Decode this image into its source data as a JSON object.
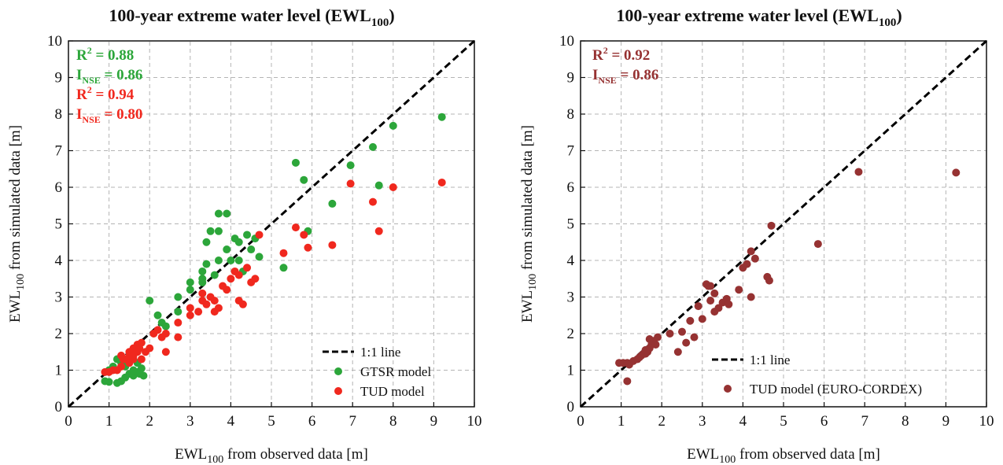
{
  "colors": {
    "green": "#2ca63a",
    "red": "#f0281e",
    "brown": "#963232",
    "grid": "#b4b4b4",
    "axis": "#111111"
  },
  "chart_data": [
    {
      "type": "scatter",
      "title": {
        "prefix": "100-year extreme water level (EWL",
        "sub": "100",
        "suffix": ")"
      },
      "xlabel": {
        "prefix": "EWL",
        "sub": "100",
        "suffix": " from observed data [m]"
      },
      "ylabel": {
        "prefix": "EWL",
        "sub": "100",
        "suffix": " from simulated data [m]"
      },
      "xlim": [
        0,
        10
      ],
      "ylim": [
        0,
        10
      ],
      "ticks": [
        "0",
        "1",
        "2",
        "3",
        "4",
        "5",
        "6",
        "7",
        "8",
        "9",
        "10"
      ],
      "grid": true,
      "legend_position": "bottom-right",
      "stats": [
        {
          "color": "#2ca63a",
          "r2_label": "R",
          "r2_sup": "2",
          "r2_value": " = 0.88",
          "nse_label": "I",
          "nse_sub": "NSE",
          "nse_value": " = 0.86"
        },
        {
          "color": "#f0281e",
          "r2_label": "R",
          "r2_sup": "2",
          "r2_value": " = 0.94",
          "nse_label": "I",
          "nse_sub": "NSE",
          "nse_value": " = 0.80"
        }
      ],
      "legend": [
        {
          "kind": "line",
          "label": "1:1 line"
        },
        {
          "kind": "dot",
          "color": "#2ca63a",
          "label": "GTSR model"
        },
        {
          "kind": "dot",
          "color": "#f0281e",
          "label": "TUD model"
        }
      ],
      "series": [
        {
          "name": "GTSR model",
          "color": "#2ca63a",
          "points": [
            [
              0.9,
              0.7
            ],
            [
              1.0,
              0.68
            ],
            [
              1.2,
              0.65
            ],
            [
              1.3,
              0.7
            ],
            [
              1.4,
              0.8
            ],
            [
              1.5,
              0.9
            ],
            [
              1.6,
              0.85
            ],
            [
              1.7,
              0.95
            ],
            [
              1.8,
              1.05
            ],
            [
              1.75,
              0.9
            ],
            [
              1.85,
              0.85
            ],
            [
              1.6,
              1.0
            ],
            [
              1.3,
              1.2
            ],
            [
              1.2,
              1.3
            ],
            [
              1.1,
              1.1
            ],
            [
              1.0,
              1.0
            ],
            [
              1.4,
              1.1
            ],
            [
              1.7,
              1.2
            ],
            [
              2.0,
              2.9
            ],
            [
              2.2,
              2.5
            ],
            [
              2.3,
              2.3
            ],
            [
              2.4,
              2.2
            ],
            [
              2.7,
              3.0
            ],
            [
              2.7,
              2.6
            ],
            [
              3.0,
              3.2
            ],
            [
              3.0,
              3.4
            ],
            [
              3.3,
              3.4
            ],
            [
              3.3,
              3.5
            ],
            [
              3.4,
              3.9
            ],
            [
              3.3,
              3.7
            ],
            [
              3.4,
              4.5
            ],
            [
              3.5,
              4.8
            ],
            [
              3.6,
              3.6
            ],
            [
              3.7,
              4.0
            ],
            [
              3.7,
              5.28
            ],
            [
              3.9,
              5.28
            ],
            [
              3.7,
              4.8
            ],
            [
              3.9,
              4.3
            ],
            [
              4.0,
              4.0
            ],
            [
              4.1,
              4.6
            ],
            [
              4.2,
              4.5
            ],
            [
              4.2,
              4.0
            ],
            [
              4.3,
              3.7
            ],
            [
              4.4,
              4.7
            ],
            [
              4.6,
              4.6
            ],
            [
              4.5,
              4.3
            ],
            [
              4.7,
              4.1
            ],
            [
              5.3,
              3.8
            ],
            [
              5.6,
              6.67
            ],
            [
              5.8,
              6.2
            ],
            [
              5.9,
              4.8
            ],
            [
              6.5,
              5.55
            ],
            [
              6.95,
              6.6
            ],
            [
              7.5,
              7.1
            ],
            [
              7.65,
              6.05
            ],
            [
              8.0,
              7.68
            ],
            [
              9.2,
              7.92
            ]
          ]
        },
        {
          "name": "TUD model",
          "color": "#f0281e",
          "points": [
            [
              0.9,
              0.95
            ],
            [
              1.0,
              0.95
            ],
            [
              1.1,
              1.0
            ],
            [
              1.2,
              1.0
            ],
            [
              1.3,
              1.1
            ],
            [
              1.35,
              1.3
            ],
            [
              1.4,
              1.3
            ],
            [
              1.5,
              1.4
            ],
            [
              1.5,
              1.5
            ],
            [
              1.6,
              1.6
            ],
            [
              1.6,
              1.4
            ],
            [
              1.7,
              1.7
            ],
            [
              1.75,
              1.6
            ],
            [
              1.8,
              1.75
            ],
            [
              1.7,
              1.5
            ],
            [
              1.8,
              1.3
            ],
            [
              1.9,
              1.5
            ],
            [
              1.5,
              1.2
            ],
            [
              1.6,
              1.3
            ],
            [
              1.3,
              1.4
            ],
            [
              2.0,
              1.6
            ],
            [
              2.1,
              2.0
            ],
            [
              2.2,
              2.1
            ],
            [
              2.3,
              1.9
            ],
            [
              2.4,
              2.0
            ],
            [
              2.4,
              1.5
            ],
            [
              2.7,
              2.3
            ],
            [
              2.7,
              1.9
            ],
            [
              3.0,
              2.7
            ],
            [
              3.0,
              2.5
            ],
            [
              3.2,
              2.6
            ],
            [
              3.3,
              2.9
            ],
            [
              3.3,
              3.1
            ],
            [
              3.4,
              2.8
            ],
            [
              3.5,
              3.0
            ],
            [
              3.6,
              2.9
            ],
            [
              3.6,
              2.6
            ],
            [
              3.7,
              2.7
            ],
            [
              3.8,
              3.3
            ],
            [
              3.9,
              3.2
            ],
            [
              4.0,
              3.5
            ],
            [
              4.1,
              3.7
            ],
            [
              4.2,
              2.9
            ],
            [
              4.3,
              2.8
            ],
            [
              4.2,
              3.6
            ],
            [
              4.4,
              3.8
            ],
            [
              4.5,
              3.4
            ],
            [
              4.6,
              3.5
            ],
            [
              4.7,
              4.7
            ],
            [
              5.3,
              4.2
            ],
            [
              5.6,
              4.9
            ],
            [
              5.8,
              4.7
            ],
            [
              5.9,
              4.35
            ],
            [
              6.5,
              4.42
            ],
            [
              6.95,
              6.1
            ],
            [
              7.5,
              5.6
            ],
            [
              7.65,
              4.8
            ],
            [
              8.0,
              6.0
            ],
            [
              9.2,
              6.13
            ]
          ]
        }
      ]
    },
    {
      "type": "scatter",
      "title": {
        "prefix": "100-year extreme water level (EWL",
        "sub": "100",
        "suffix": ")"
      },
      "xlabel": {
        "prefix": "EWL",
        "sub": "100",
        "suffix": " from observed data [m]"
      },
      "ylabel": {
        "prefix": "EWL",
        "sub": "100",
        "suffix": " from simulated data [m]"
      },
      "xlim": [
        0,
        10
      ],
      "ylim": [
        0,
        10
      ],
      "ticks": [
        "0",
        "1",
        "2",
        "3",
        "4",
        "5",
        "6",
        "7",
        "8",
        "9",
        "10"
      ],
      "grid": true,
      "legend_position": "bottom-right",
      "stats": [
        {
          "color": "#963232",
          "r2_label": "R",
          "r2_sup": "2",
          "r2_value": " = 0.92",
          "nse_label": "I",
          "nse_sub": "NSE",
          "nse_value": " = 0.86"
        }
      ],
      "legend": [
        {
          "kind": "line",
          "label": "1:1 line"
        },
        {
          "kind": "dot",
          "color": "#963232",
          "label": "TUD model (EURO-CORDEX)"
        }
      ],
      "series": [
        {
          "name": "TUD model (EURO-CORDEX)",
          "color": "#963232",
          "points": [
            [
              0.95,
              1.2
            ],
            [
              1.05,
              1.2
            ],
            [
              1.15,
              1.2
            ],
            [
              1.2,
              1.15
            ],
            [
              1.3,
              1.25
            ],
            [
              1.4,
              1.3
            ],
            [
              1.45,
              1.35
            ],
            [
              1.5,
              1.4
            ],
            [
              1.6,
              1.45
            ],
            [
              1.65,
              1.5
            ],
            [
              1.7,
              1.6
            ],
            [
              1.75,
              1.7
            ],
            [
              1.8,
              1.8
            ],
            [
              1.85,
              1.7
            ],
            [
              1.9,
              1.9
            ],
            [
              1.7,
              1.85
            ],
            [
              1.6,
              1.55
            ],
            [
              1.55,
              1.45
            ],
            [
              1.15,
              0.7
            ],
            [
              2.2,
              2.0
            ],
            [
              2.4,
              1.5
            ],
            [
              2.5,
              2.05
            ],
            [
              2.6,
              1.75
            ],
            [
              2.7,
              2.35
            ],
            [
              2.8,
              1.9
            ],
            [
              2.9,
              2.75
            ],
            [
              3.0,
              2.4
            ],
            [
              3.1,
              3.35
            ],
            [
              3.15,
              3.3
            ],
            [
              3.2,
              3.3
            ],
            [
              3.2,
              2.9
            ],
            [
              3.3,
              2.6
            ],
            [
              3.3,
              3.1
            ],
            [
              3.4,
              2.7
            ],
            [
              3.5,
              2.85
            ],
            [
              3.6,
              2.95
            ],
            [
              3.65,
              2.8
            ],
            [
              3.9,
              3.2
            ],
            [
              4.0,
              3.8
            ],
            [
              4.1,
              3.9
            ],
            [
              4.2,
              4.25
            ],
            [
              4.2,
              3.0
            ],
            [
              4.3,
              4.05
            ],
            [
              4.6,
              3.55
            ],
            [
              4.65,
              3.45
            ],
            [
              4.7,
              4.95
            ],
            [
              5.85,
              4.45
            ],
            [
              6.85,
              6.42
            ],
            [
              9.25,
              6.4
            ]
          ]
        }
      ]
    }
  ]
}
